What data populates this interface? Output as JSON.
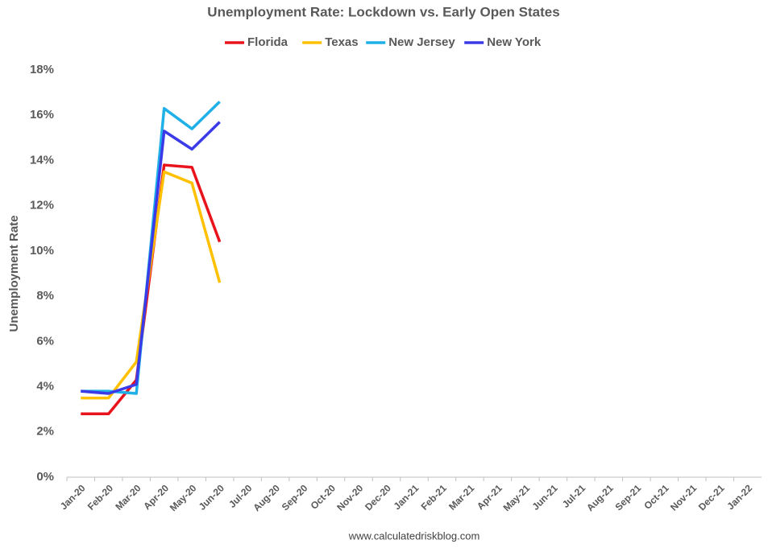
{
  "chart_data": {
    "type": "line",
    "title": "Unemployment Rate: Lockdown vs. Early Open States",
    "y_label": "Unemployment Rate",
    "footer": "www.calculatedriskblog.com",
    "categories": [
      "Jan-20",
      "Feb-20",
      "Mar-20",
      "Apr-20",
      "May-20",
      "Jun-20",
      "Jul-20",
      "Aug-20",
      "Sep-20",
      "Oct-20",
      "Nov-20",
      "Dec-20",
      "Jan-21",
      "Feb-21",
      "Mar-21",
      "Apr-21",
      "May-21",
      "Jun-21",
      "Jul-21",
      "Aug-21",
      "Sep-21",
      "Oct-21",
      "Nov-21",
      "Dec-21",
      "Jan-22"
    ],
    "series": [
      {
        "name": "Florida",
        "color": "#e8131b",
        "values": [
          2.8,
          2.8,
          4.3,
          13.8,
          13.7,
          10.4,
          null,
          null,
          null,
          null,
          null,
          null,
          null,
          null,
          null,
          null,
          null,
          null,
          null,
          null,
          null,
          null,
          null,
          null,
          null
        ]
      },
      {
        "name": "Texas",
        "color": "#ffc000",
        "values": [
          3.5,
          3.5,
          5.1,
          13.5,
          13.0,
          8.6,
          null,
          null,
          null,
          null,
          null,
          null,
          null,
          null,
          null,
          null,
          null,
          null,
          null,
          null,
          null,
          null,
          null,
          null,
          null
        ]
      },
      {
        "name": "New Jersey",
        "color": "#1fb0e8",
        "values": [
          3.8,
          3.8,
          3.7,
          16.3,
          15.4,
          16.6,
          null,
          null,
          null,
          null,
          null,
          null,
          null,
          null,
          null,
          null,
          null,
          null,
          null,
          null,
          null,
          null,
          null,
          null,
          null
        ]
      },
      {
        "name": "New York",
        "color": "#3a3ae8",
        "values": [
          3.8,
          3.7,
          4.1,
          15.3,
          14.5,
          15.7,
          null,
          null,
          null,
          null,
          null,
          null,
          null,
          null,
          null,
          null,
          null,
          null,
          null,
          null,
          null,
          null,
          null,
          null,
          null
        ]
      }
    ],
    "ylim": [
      0,
      18
    ],
    "yticks": [
      {
        "value": 0,
        "label": "0%"
      },
      {
        "value": 2,
        "label": "2%"
      },
      {
        "value": 4,
        "label": "4%"
      },
      {
        "value": 6,
        "label": "6%"
      },
      {
        "value": 8,
        "label": "8%"
      },
      {
        "value": 10,
        "label": "10%"
      },
      {
        "value": 12,
        "label": "12%"
      },
      {
        "value": 14,
        "label": "14%"
      },
      {
        "value": 16,
        "label": "16%"
      },
      {
        "value": 18,
        "label": "18%"
      }
    ],
    "grid": false,
    "legend": "top"
  }
}
